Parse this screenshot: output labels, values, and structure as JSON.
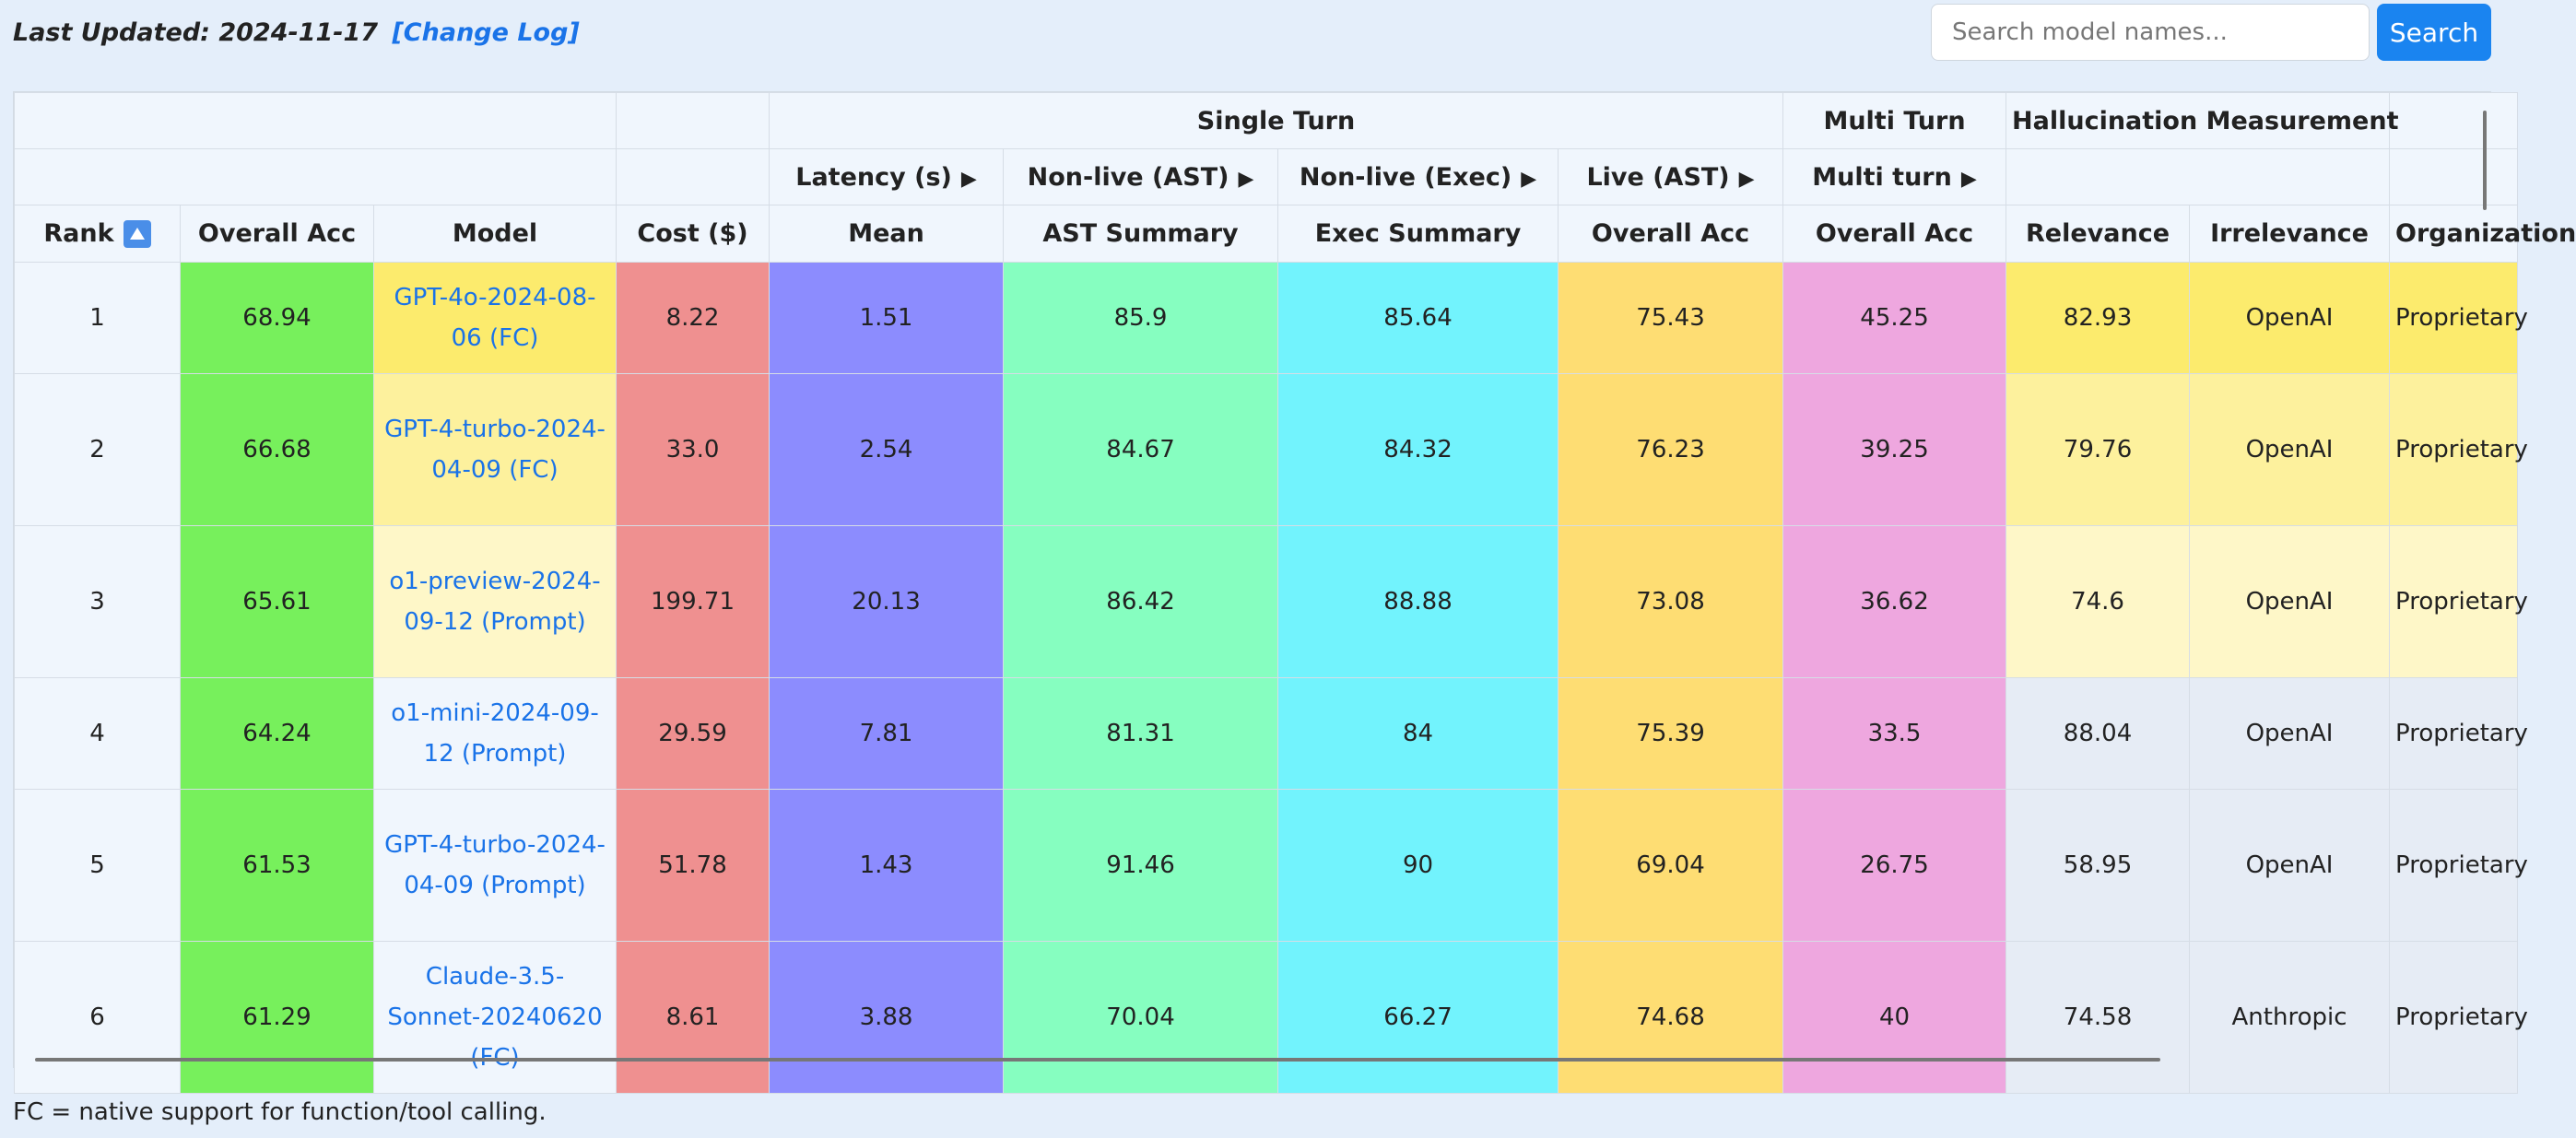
{
  "header": {
    "last_updated": "Last Updated: 2024-11-17",
    "change_log": "[Change Log]"
  },
  "search": {
    "placeholder": "Search model names...",
    "button": "Search"
  },
  "table": {
    "group_row_1": {
      "single_turn": "Single Turn",
      "multi_turn": "Multi Turn",
      "hallucination": "Hallucination Measurement"
    },
    "group_row_2": {
      "latency": "Latency (s)",
      "non_live_ast": "Non-live (AST)",
      "non_live_exec": "Non-live (Exec)",
      "live_ast": "Live (AST)",
      "multi_turn": "Multi turn"
    },
    "columns": [
      "Rank",
      "Overall Acc",
      "Model",
      "Cost ($)",
      "Mean",
      "AST Summary",
      "Exec Summary",
      "Overall Acc",
      "Overall Acc",
      "Relevance",
      "Irrelevance",
      "Organization"
    ],
    "rows": [
      {
        "rank": "1",
        "overall": "68.94",
        "model": "GPT-4o-2024-08-06 (FC)",
        "cost": "8.22",
        "latency": "1.51",
        "ast": "85.9",
        "exec": "85.64",
        "live": "75.43",
        "multi": "45.25",
        "relevance": "82.93",
        "irrelevance": "OpenAI",
        "org": "Proprietary"
      },
      {
        "rank": "2",
        "overall": "66.68",
        "model": "GPT-4-turbo-2024-04-09 (FC)",
        "cost": "33.0",
        "latency": "2.54",
        "ast": "84.67",
        "exec": "84.32",
        "live": "76.23",
        "multi": "39.25",
        "relevance": "79.76",
        "irrelevance": "OpenAI",
        "org": "Proprietary"
      },
      {
        "rank": "3",
        "overall": "65.61",
        "model": "o1-preview-2024-09-12 (Prompt)",
        "cost": "199.71",
        "latency": "20.13",
        "ast": "86.42",
        "exec": "88.88",
        "live": "73.08",
        "multi": "36.62",
        "relevance": "74.6",
        "irrelevance": "OpenAI",
        "org": "Proprietary"
      },
      {
        "rank": "4",
        "overall": "64.24",
        "model": "o1-mini-2024-09-12 (Prompt)",
        "cost": "29.59",
        "latency": "7.81",
        "ast": "81.31",
        "exec": "84",
        "live": "75.39",
        "multi": "33.5",
        "relevance": "88.04",
        "irrelevance": "OpenAI",
        "org": "Proprietary"
      },
      {
        "rank": "5",
        "overall": "61.53",
        "model": "GPT-4-turbo-2024-04-09 (Prompt)",
        "cost": "51.78",
        "latency": "1.43",
        "ast": "91.46",
        "exec": "90",
        "live": "69.04",
        "multi": "26.75",
        "relevance": "58.95",
        "irrelevance": "OpenAI",
        "org": "Proprietary"
      },
      {
        "rank": "6",
        "overall": "61.29",
        "model": "Claude-3.5-Sonnet-20240620 (FC)",
        "cost": "8.61",
        "latency": "3.88",
        "ast": "70.04",
        "exec": "66.27",
        "live": "74.68",
        "multi": "40",
        "relevance": "74.58",
        "irrelevance": "Anthropic",
        "org": "Proprietary"
      }
    ]
  },
  "colors": {
    "rank_1": "#fceb6d",
    "rank_2": "#fdf19d",
    "rank_3": "#fef7c8",
    "default_row": "#e6ecf5"
  },
  "footnote": "FC = native support for function/tool calling."
}
